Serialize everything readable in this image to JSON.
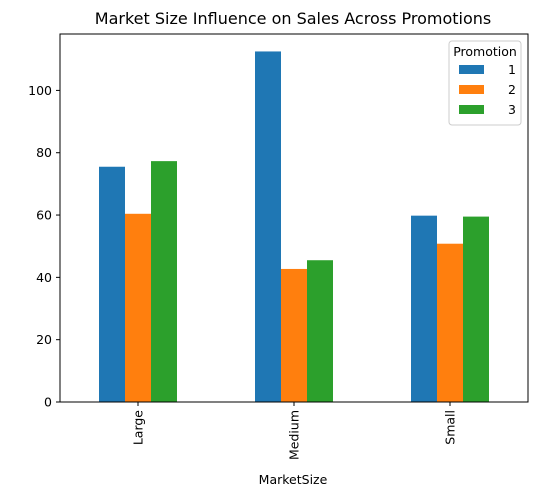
{
  "chart_data": {
    "type": "bar",
    "title": "Market Size Influence on Sales Across Promotions",
    "xlabel": "MarketSize",
    "ylabel": "",
    "categories": [
      "Large",
      "Medium",
      "Small"
    ],
    "series": [
      {
        "name": "1",
        "color": "#1f77b4",
        "values": [
          75.5,
          112.5,
          59.8
        ]
      },
      {
        "name": "2",
        "color": "#ff7f0e",
        "values": [
          60.4,
          42.7,
          50.8
        ]
      },
      {
        "name": "3",
        "color": "#2ca02c",
        "values": [
          77.3,
          45.5,
          59.5
        ]
      }
    ],
    "ylim": [
      0,
      118.1
    ],
    "yticks": [
      0,
      20,
      40,
      60,
      80,
      100
    ],
    "grid": false,
    "legend": {
      "title": "Promotion",
      "position": "top-right"
    }
  }
}
